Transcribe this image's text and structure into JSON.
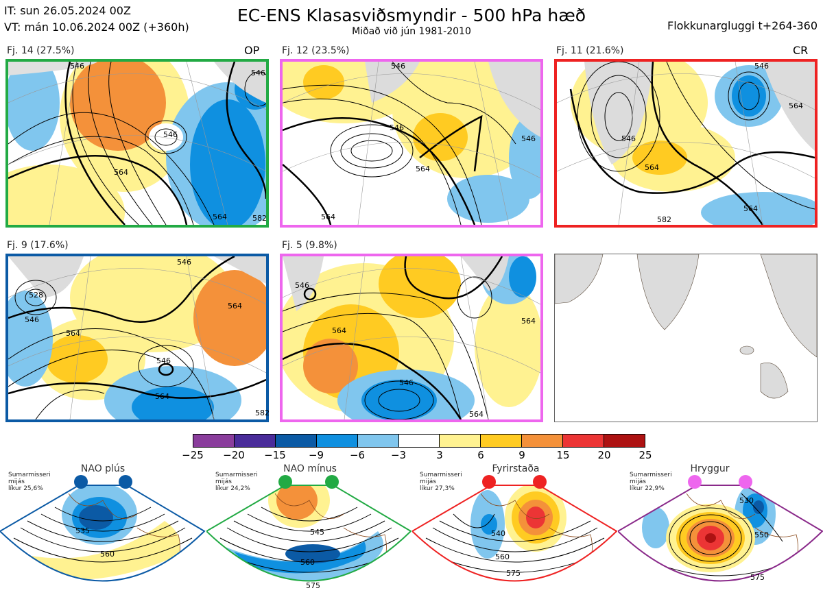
{
  "header": {
    "init_line": "IT: sun 26.05.2024 00Z",
    "valid_line": "VT: mán 10.06.2024 00Z  (+360h)",
    "title": "EC-ENS Klasasviðsmyndir - 500 hPa hæð",
    "subtitle": "Miðað við jún 1981-2010",
    "window": "Flokkunargluggi t+264-360"
  },
  "panels": [
    {
      "label": "Fj. 14 (27.5%)",
      "tag": "OP",
      "border": "#22aa44",
      "contour_labels": [
        "546",
        "546",
        "546",
        "564",
        "564",
        "582"
      ]
    },
    {
      "label": "Fj. 12 (23.5%)",
      "tag": "",
      "border": "#ee66ee",
      "contour_labels": [
        "546",
        "546",
        "564",
        "564",
        "546"
      ]
    },
    {
      "label": "Fj. 11 (21.6%)",
      "tag": "CR",
      "border": "#ee2222",
      "contour_labels": [
        "546",
        "546",
        "564",
        "564",
        "564",
        "582"
      ]
    },
    {
      "label": "Fj. 9 (17.6%)",
      "tag": "",
      "border": "#0b5aa5",
      "contour_labels": [
        "528",
        "546",
        "546",
        "564",
        "564",
        "546",
        "564",
        "582"
      ]
    },
    {
      "label": "Fj. 5 (9.8%)",
      "tag": "",
      "border": "#ee66ee",
      "contour_labels": [
        "546",
        "564",
        "564",
        "546",
        "564"
      ]
    }
  ],
  "colorbar": {
    "ticks": [
      "−25",
      "−20",
      "−15",
      "−9",
      "−6",
      "−3",
      "3",
      "6",
      "9",
      "15",
      "20",
      "25"
    ],
    "colors": [
      "#8a3d9c",
      "#4a2c9a",
      "#0b5aa5",
      "#0f90e0",
      "#80c6ee",
      "#ffffff",
      "#fff291",
      "#ffcb22",
      "#f4913a",
      "#ec3535",
      "#ad1212"
    ]
  },
  "regimes": [
    {
      "title": "NAO plús",
      "note": [
        "Sumarmisseri",
        "mijás",
        "líkur 25,6%"
      ],
      "color": "#0b5aa5",
      "contour_labels": [
        "535",
        "560"
      ]
    },
    {
      "title": "NAO mínus",
      "note": [
        "Sumarmisseri",
        "mijás",
        "líkur 24,2%"
      ],
      "color": "#22aa44",
      "contour_labels": [
        "545",
        "560",
        "575"
      ]
    },
    {
      "title": "Fyrirstaða",
      "note": [
        "Sumarmisseri",
        "mijás",
        "líkur 27,3%"
      ],
      "color": "#ee2222",
      "contour_labels": [
        "540",
        "560",
        "575"
      ]
    },
    {
      "title": "Hryggur",
      "note": [
        "Sumarmisseri",
        "mijás",
        "líkur 22,9%"
      ],
      "color": "#ee66ee",
      "contour_labels": [
        "530",
        "550",
        "575"
      ]
    }
  ]
}
